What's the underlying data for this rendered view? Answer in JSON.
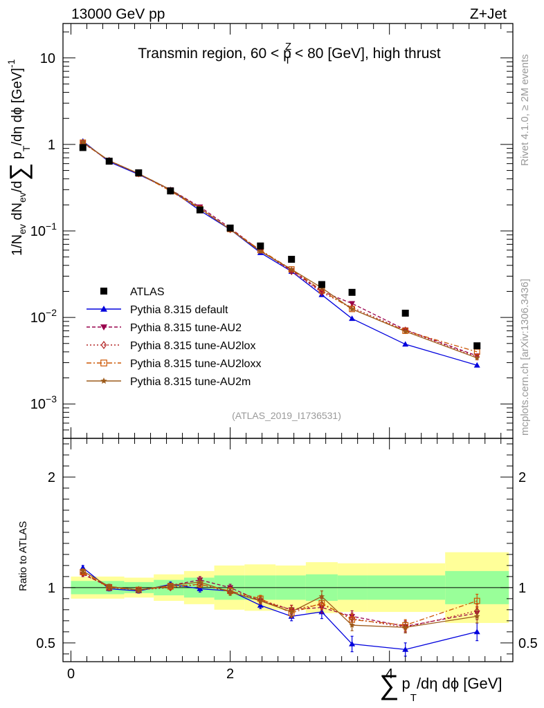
{
  "header": {
    "left": "13000 GeV pp",
    "right": "Z+Jet"
  },
  "side_labels": {
    "rivet": "Rivet 4.1.0, ≥ 2M events",
    "mcplots": "mcplots.cern.ch [arXiv:1306.3436]"
  },
  "chart_data": {
    "type": "line",
    "title": "Transmin region, 60 < p_T^Z < 80 [GeV], high thrust",
    "title_parts": {
      "pre": "Transmin region, 60 < p",
      "sub": "T",
      "sup": "Z",
      "post": " < 80 [GeV], high thrust"
    },
    "analysis_id": "(ATLAS_2019_I1736531)",
    "xlabel": "∑ p_T/dη dϕ [GeV]",
    "xlabel_parts": {
      "sum": "∑",
      "p": "p",
      "sub": "T",
      "rest": "/dη dϕ [GeV]"
    },
    "ylabel": "1/N_ev dN_ev/d∑ p_T/dη dϕ [GeV]^-1",
    "ylabel_parts": {
      "a": "1/N",
      "ev1": "ev",
      "b": " dN",
      "ev2": "ev",
      "c": "/d",
      "sum": "∑",
      "d": " p",
      "t": "T",
      "e": "/dη dϕ  [GeV]",
      "exp": "-1"
    },
    "ratio_ylabel": "Ratio to ATLAS",
    "xlim": [
      -0.1,
      5.55
    ],
    "ylim_log": [
      0.0004,
      25
    ],
    "ratio_ylim": [
      0.33,
      2.35
    ],
    "x_ticks": [
      "0",
      "2",
      "4"
    ],
    "y_ticks": [
      {
        "value": 10,
        "base": "10",
        "exp": ""
      },
      {
        "value": 1,
        "base": "1",
        "exp": ""
      },
      {
        "value": 0.1,
        "base": "10",
        "exp": "−1"
      },
      {
        "value": 0.01,
        "base": "10",
        "exp": "−2"
      },
      {
        "value": 0.001,
        "base": "10",
        "exp": "−3"
      }
    ],
    "ratio_ticks": [
      "0.5",
      "1",
      "2"
    ],
    "x": [
      0.15,
      0.48,
      0.85,
      1.25,
      1.62,
      2.0,
      2.38,
      2.77,
      3.15,
      3.53,
      4.2,
      5.1
    ],
    "bin_edges": [
      0,
      0.3,
      0.67,
      1.04,
      1.42,
      1.8,
      2.18,
      2.57,
      2.95,
      3.35,
      3.72,
      4.7,
      5.5
    ],
    "data": {
      "name": "ATLAS",
      "values": [
        0.92,
        0.64,
        0.47,
        0.29,
        0.175,
        0.108,
        0.067,
        0.047,
        0.024,
        0.0195,
        0.0112,
        0.0047
      ],
      "band_inner": [
        0.06,
        0.06,
        0.05,
        0.07,
        0.09,
        0.11,
        0.11,
        0.11,
        0.12,
        0.11,
        0.11,
        0.15
      ],
      "band_outer": [
        0.1,
        0.1,
        0.09,
        0.12,
        0.15,
        0.2,
        0.21,
        0.2,
        0.23,
        0.22,
        0.22,
        0.32
      ]
    },
    "series": [
      {
        "name": "Pythia 8.315 default",
        "color": "#0000dd",
        "marker": "triangle-up",
        "dash": "",
        "values": [
          1.09,
          0.63,
          0.45,
          0.3,
          0.172,
          0.104,
          0.056,
          0.034,
          0.0183,
          0.0097,
          0.0049,
          0.0028
        ],
        "ratio": [
          1.18,
          0.99,
          0.97,
          1.03,
          0.99,
          0.97,
          0.84,
          0.74,
          0.78,
          0.49,
          0.44,
          0.6
        ],
        "err": [
          0.02,
          0.02,
          0.02,
          0.02,
          0.03,
          0.03,
          0.03,
          0.04,
          0.06,
          0.07,
          0.06,
          0.08
        ]
      },
      {
        "name": "Pythia 8.315 tune-AU2",
        "color": "#99004c",
        "marker": "triangle-down",
        "dash": "5,3",
        "values": [
          1.04,
          0.65,
          0.46,
          0.3,
          0.19,
          0.108,
          0.059,
          0.035,
          0.02,
          0.0145,
          0.0072,
          0.0036
        ],
        "ratio": [
          1.12,
          1.01,
          0.98,
          1.02,
          1.07,
          1.0,
          0.88,
          0.8,
          0.82,
          0.74,
          0.65,
          0.77
        ],
        "err": [
          0.02,
          0.02,
          0.02,
          0.02,
          0.03,
          0.03,
          0.03,
          0.04,
          0.05,
          0.05,
          0.05,
          0.06
        ]
      },
      {
        "name": "Pythia 8.315 tune-AU2lox",
        "color": "#b22222",
        "marker": "diamond-open",
        "dash": "2,3",
        "values": [
          1.04,
          0.65,
          0.46,
          0.29,
          0.18,
          0.104,
          0.06,
          0.034,
          0.0195,
          0.013,
          0.0071,
          0.0035
        ],
        "ratio": [
          1.13,
          1.0,
          0.98,
          1.0,
          1.03,
          0.96,
          0.89,
          0.8,
          0.85,
          0.72,
          0.64,
          0.79
        ],
        "err": [
          0.02,
          0.02,
          0.02,
          0.02,
          0.03,
          0.03,
          0.03,
          0.04,
          0.05,
          0.05,
          0.05,
          0.06
        ]
      },
      {
        "name": "Pythia 8.315 tune-AU2loxx",
        "color": "#cc5500",
        "marker": "square-open",
        "dash": "7,3,2,3",
        "values": [
          1.05,
          0.64,
          0.46,
          0.29,
          0.18,
          0.105,
          0.06,
          0.036,
          0.0205,
          0.0125,
          0.007,
          0.004
        ],
        "ratio": [
          1.14,
          1.0,
          0.98,
          1.01,
          1.03,
          0.97,
          0.9,
          0.77,
          0.86,
          0.71,
          0.66,
          0.88
        ],
        "err": [
          0.02,
          0.02,
          0.02,
          0.02,
          0.03,
          0.03,
          0.03,
          0.04,
          0.05,
          0.05,
          0.05,
          0.06
        ]
      },
      {
        "name": "Pythia 8.315 tune-AU2m",
        "color": "#9c5a1a",
        "marker": "star",
        "dash": "",
        "values": [
          1.06,
          0.65,
          0.46,
          0.3,
          0.183,
          0.104,
          0.058,
          0.036,
          0.022,
          0.0125,
          0.0069,
          0.0034
        ],
        "ratio": [
          1.15,
          1.01,
          0.98,
          1.02,
          1.05,
          0.96,
          0.88,
          0.78,
          0.92,
          0.66,
          0.64,
          0.74
        ],
        "err": [
          0.02,
          0.02,
          0.02,
          0.02,
          0.03,
          0.03,
          0.03,
          0.04,
          0.05,
          0.05,
          0.05,
          0.06
        ]
      }
    ],
    "colors": {
      "band_inner": "#99ff99",
      "band_outer": "#ffff99"
    },
    "legend_position": "left-middle"
  }
}
